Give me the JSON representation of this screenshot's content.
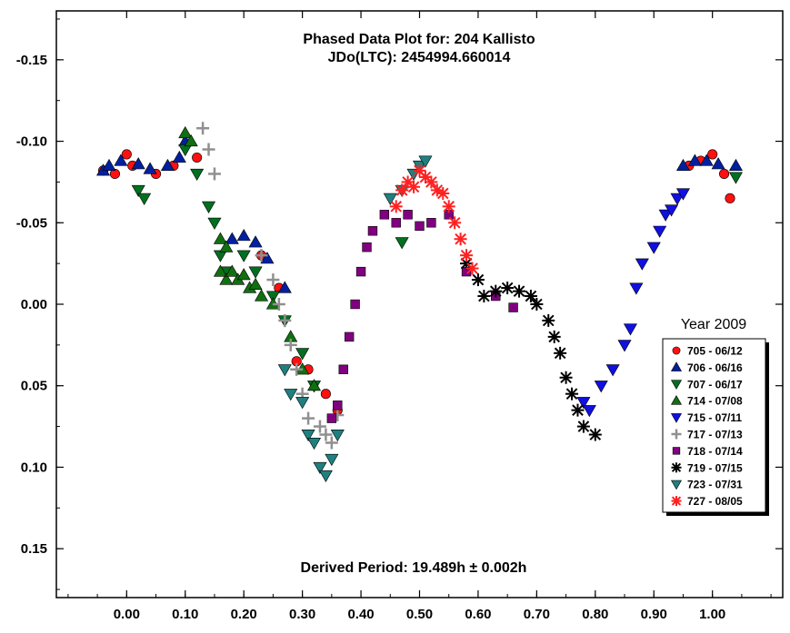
{
  "chart_data": {
    "type": "scatter",
    "title": "Phased Data Plot for: 204 Kallisto",
    "subtitle": "JDo(LTC): 2454994.660014",
    "annotation": "Derived Period: 19.489h ± 0.002h",
    "xlim": [
      -0.12,
      1.12
    ],
    "ylim": [
      -0.18,
      0.18
    ],
    "y_inverted": true,
    "x_ticks": [
      "0.00",
      "0.10",
      "0.20",
      "0.30",
      "0.40",
      "0.50",
      "0.60",
      "0.70",
      "0.80",
      "0.90",
      "1.00"
    ],
    "y_ticks": [
      "-0.15",
      "-0.10",
      "-0.05",
      "0.00",
      "0.05",
      "0.10",
      "0.15"
    ],
    "legend_title": "Year 2009",
    "legend_position": "right",
    "series": [
      {
        "name": "705 - 06/12",
        "marker": "circle",
        "color": "#ff1010",
        "points": [
          [
            -0.04,
            -0.082
          ],
          [
            -0.02,
            -0.08
          ],
          [
            0.0,
            -0.092
          ],
          [
            0.01,
            -0.085
          ],
          [
            0.05,
            -0.08
          ],
          [
            0.08,
            -0.085
          ],
          [
            0.12,
            -0.09
          ],
          [
            0.23,
            -0.03
          ],
          [
            0.26,
            -0.01
          ],
          [
            0.29,
            0.035
          ],
          [
            0.31,
            0.04
          ],
          [
            0.34,
            0.055
          ],
          [
            0.36,
            0.065
          ],
          [
            0.96,
            -0.085
          ],
          [
            0.98,
            -0.088
          ],
          [
            1.0,
            -0.092
          ],
          [
            1.02,
            -0.08
          ],
          [
            1.03,
            -0.065
          ]
        ]
      },
      {
        "name": "706 - 06/16",
        "marker": "triangle-up",
        "color": "#0020a0",
        "points": [
          [
            -0.04,
            -0.082
          ],
          [
            -0.03,
            -0.085
          ],
          [
            -0.01,
            -0.088
          ],
          [
            0.02,
            -0.086
          ],
          [
            0.04,
            -0.083
          ],
          [
            0.07,
            -0.085
          ],
          [
            0.09,
            -0.09
          ],
          [
            0.1,
            -0.1
          ],
          [
            0.18,
            -0.04
          ],
          [
            0.2,
            -0.042
          ],
          [
            0.22,
            -0.038
          ],
          [
            0.24,
            -0.028
          ],
          [
            0.27,
            -0.01
          ],
          [
            0.95,
            -0.085
          ],
          [
            0.97,
            -0.088
          ],
          [
            0.99,
            -0.088
          ],
          [
            1.01,
            -0.086
          ],
          [
            1.04,
            -0.085
          ]
        ]
      },
      {
        "name": "707 - 06/17",
        "marker": "triangle-down",
        "color": "#007020",
        "points": [
          [
            0.02,
            -0.07
          ],
          [
            0.03,
            -0.065
          ],
          [
            0.1,
            -0.095
          ],
          [
            0.12,
            -0.08
          ],
          [
            0.14,
            -0.06
          ],
          [
            0.15,
            -0.05
          ],
          [
            0.16,
            -0.03
          ],
          [
            0.17,
            -0.02
          ],
          [
            0.2,
            -0.03
          ],
          [
            0.22,
            -0.02
          ],
          [
            0.25,
            -0.005
          ],
          [
            0.27,
            0.01
          ],
          [
            0.3,
            0.03
          ],
          [
            0.32,
            0.05
          ],
          [
            0.47,
            -0.038
          ],
          [
            1.04,
            -0.078
          ]
        ]
      },
      {
        "name": "714 - 07/08",
        "marker": "triangle-up",
        "color": "#107010",
        "points": [
          [
            0.1,
            -0.105
          ],
          [
            0.11,
            -0.1
          ],
          [
            0.16,
            -0.04
          ],
          [
            0.17,
            -0.035
          ],
          [
            0.16,
            -0.02
          ],
          [
            0.17,
            -0.015
          ],
          [
            0.18,
            -0.02
          ],
          [
            0.19,
            -0.015
          ],
          [
            0.2,
            -0.018
          ],
          [
            0.21,
            -0.01
          ],
          [
            0.22,
            -0.012
          ],
          [
            0.23,
            -0.005
          ],
          [
            0.25,
            0.0
          ],
          [
            0.28,
            0.02
          ],
          [
            0.3,
            0.04
          ],
          [
            0.32,
            0.05
          ]
        ]
      },
      {
        "name": "715 - 07/11",
        "marker": "triangle-down",
        "color": "#1010e0",
        "points": [
          [
            0.78,
            0.06
          ],
          [
            0.79,
            0.065
          ],
          [
            0.81,
            0.05
          ],
          [
            0.83,
            0.04
          ],
          [
            0.85,
            0.025
          ],
          [
            0.86,
            0.015
          ],
          [
            0.87,
            -0.01
          ],
          [
            0.88,
            -0.025
          ],
          [
            0.9,
            -0.035
          ],
          [
            0.91,
            -0.045
          ],
          [
            0.92,
            -0.055
          ],
          [
            0.93,
            -0.058
          ],
          [
            0.94,
            -0.065
          ],
          [
            0.95,
            -0.068
          ]
        ]
      },
      {
        "name": "717 - 07/13",
        "marker": "plus",
        "color": "#909090",
        "points": [
          [
            0.13,
            -0.108
          ],
          [
            0.14,
            -0.095
          ],
          [
            0.15,
            -0.08
          ],
          [
            0.23,
            -0.03
          ],
          [
            0.25,
            -0.015
          ],
          [
            0.26,
            0.0
          ],
          [
            0.27,
            0.01
          ],
          [
            0.28,
            0.025
          ],
          [
            0.29,
            0.04
          ],
          [
            0.3,
            0.055
          ],
          [
            0.31,
            0.07
          ],
          [
            0.33,
            0.075
          ],
          [
            0.34,
            0.08
          ],
          [
            0.35,
            0.085
          ],
          [
            0.36,
            0.068
          ]
        ]
      },
      {
        "name": "718 - 07/14",
        "marker": "square",
        "color": "#800080",
        "points": [
          [
            0.35,
            0.07
          ],
          [
            0.36,
            0.062
          ],
          [
            0.37,
            0.04
          ],
          [
            0.38,
            0.02
          ],
          [
            0.39,
            0.0
          ],
          [
            0.4,
            -0.02
          ],
          [
            0.41,
            -0.035
          ],
          [
            0.42,
            -0.045
          ],
          [
            0.44,
            -0.055
          ],
          [
            0.46,
            -0.05
          ],
          [
            0.48,
            -0.055
          ],
          [
            0.5,
            -0.048
          ],
          [
            0.52,
            -0.05
          ],
          [
            0.55,
            -0.055
          ],
          [
            0.58,
            -0.02
          ],
          [
            0.63,
            -0.005
          ],
          [
            0.66,
            0.002
          ]
        ]
      },
      {
        "name": "719 - 07/15",
        "marker": "star",
        "color": "#000000",
        "points": [
          [
            0.58,
            -0.025
          ],
          [
            0.6,
            -0.015
          ],
          [
            0.61,
            -0.005
          ],
          [
            0.63,
            -0.008
          ],
          [
            0.65,
            -0.01
          ],
          [
            0.67,
            -0.008
          ],
          [
            0.69,
            -0.005
          ],
          [
            0.7,
            0.0
          ],
          [
            0.72,
            0.01
          ],
          [
            0.73,
            0.02
          ],
          [
            0.74,
            0.03
          ],
          [
            0.75,
            0.045
          ],
          [
            0.76,
            0.055
          ],
          [
            0.77,
            0.065
          ],
          [
            0.78,
            0.075
          ],
          [
            0.8,
            0.08
          ]
        ]
      },
      {
        "name": "723 - 07/31",
        "marker": "triangle-down",
        "color": "#208080",
        "points": [
          [
            0.27,
            0.04
          ],
          [
            0.28,
            0.055
          ],
          [
            0.3,
            0.06
          ],
          [
            0.31,
            0.08
          ],
          [
            0.32,
            0.085
          ],
          [
            0.33,
            0.1
          ],
          [
            0.34,
            0.105
          ],
          [
            0.35,
            0.095
          ],
          [
            0.36,
            0.08
          ],
          [
            0.45,
            -0.065
          ],
          [
            0.47,
            -0.07
          ],
          [
            0.49,
            -0.08
          ],
          [
            0.5,
            -0.085
          ],
          [
            0.51,
            -0.088
          ]
        ]
      },
      {
        "name": "727 - 08/05",
        "marker": "star",
        "color": "#ff2020",
        "points": [
          [
            0.46,
            -0.06
          ],
          [
            0.47,
            -0.07
          ],
          [
            0.48,
            -0.075
          ],
          [
            0.49,
            -0.072
          ],
          [
            0.5,
            -0.082
          ],
          [
            0.51,
            -0.078
          ],
          [
            0.52,
            -0.075
          ],
          [
            0.53,
            -0.07
          ],
          [
            0.54,
            -0.068
          ],
          [
            0.55,
            -0.06
          ],
          [
            0.56,
            -0.05
          ],
          [
            0.57,
            -0.04
          ],
          [
            0.58,
            -0.03
          ],
          [
            0.59,
            -0.022
          ]
        ]
      }
    ]
  }
}
